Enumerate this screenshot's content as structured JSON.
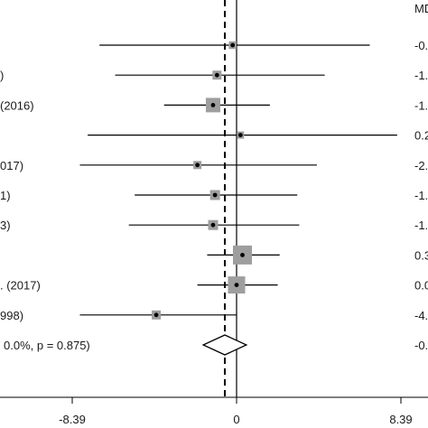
{
  "chart_data": {
    "type": "forest",
    "effect_header": "MD",
    "studies": [
      {
        "label": "",
        "md": -0.2,
        "lo": -7.0,
        "hi": 6.8,
        "weight": 0.5,
        "md_text": "-0."
      },
      {
        "label": ")",
        "md": -1.0,
        "lo": -6.2,
        "hi": 4.5,
        "weight": 0.8,
        "md_text": "-1."
      },
      {
        "label": "(2016)",
        "md": -1.2,
        "lo": -3.7,
        "hi": 1.7,
        "weight": 2.0,
        "md_text": "-1."
      },
      {
        "label": "",
        "md": 0.2,
        "lo": -7.6,
        "hi": 8.2,
        "weight": 0.4,
        "md_text": "0.2"
      },
      {
        "label": "017)",
        "md": -2.0,
        "lo": -8.0,
        "hi": 4.1,
        "weight": 0.6,
        "md_text": "-2."
      },
      {
        "label": "1)",
        "md": -1.1,
        "lo": -5.2,
        "hi": 3.1,
        "weight": 1.0,
        "md_text": "-1."
      },
      {
        "label": "3)",
        "md": -1.2,
        "lo": -5.5,
        "hi": 3.2,
        "weight": 1.0,
        "md_text": "-1."
      },
      {
        "label": "",
        "md": 0.3,
        "lo": -1.5,
        "hi": 2.2,
        "weight": 3.0,
        "md_text": "0.3"
      },
      {
        "label": ". (2017)",
        "md": 0.0,
        "lo": -2.0,
        "hi": 2.1,
        "weight": 2.6,
        "md_text": "0.0"
      },
      {
        "label": "998)",
        "md": -4.1,
        "lo": -8.0,
        "hi": 0.0,
        "weight": 0.8,
        "md_text": "-4."
      }
    ],
    "overall": {
      "label": "0.0%, p = 0.875)",
      "md": -0.6,
      "lo": -1.7,
      "hi": 0.5,
      "md_text": "-0."
    },
    "null_line": 0,
    "xlim": [
      -8.39,
      8.39
    ],
    "x_ticks": [
      "-8.39",
      "0",
      "8.39"
    ],
    "x_tick_values": [
      -8.39,
      0,
      8.39
    ]
  }
}
